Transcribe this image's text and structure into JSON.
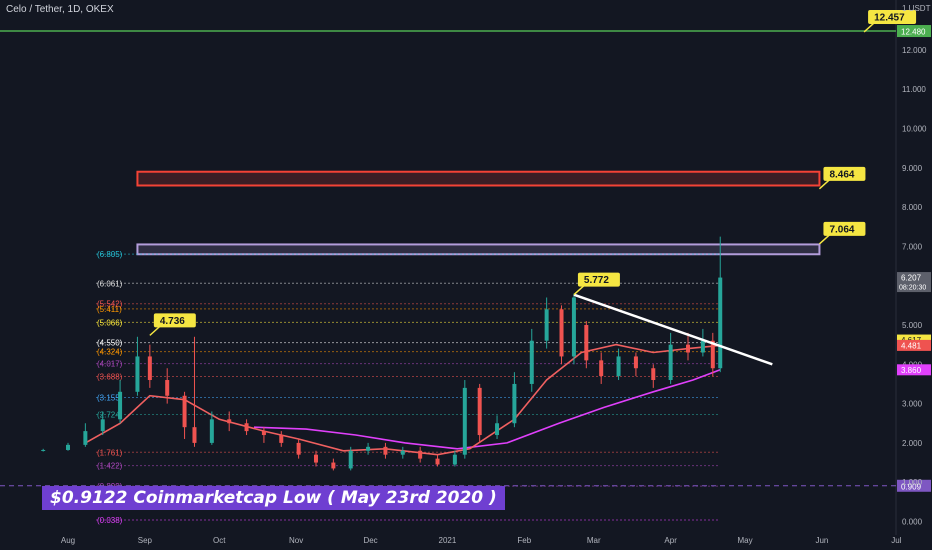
{
  "chart_title": "Celo / Tether, 1D, OKEX",
  "colors": {
    "background": "#131722",
    "candle_up": "#26a69a",
    "candle_down": "#ef5350",
    "ema_short": "#f06060",
    "ema_long": "#e040fb",
    "resistance_green": "#4caf50",
    "red_zone": "#f44336",
    "purple_zone": "#b39ddb",
    "badge": "#f5e642",
    "annotation_bg": "#6f3fd1"
  },
  "chart_data": {
    "type": "candlestick",
    "title": "Celo / Tether, 1D, OKEX",
    "quote_unit": "1 USDT",
    "yticks": [
      0.0,
      1.0,
      2.0,
      3.0,
      4.0,
      5.0,
      6.0,
      7.0,
      8.0,
      9.0,
      10.0,
      11.0,
      12.0
    ],
    "xticks": [
      "Aug",
      "Sep",
      "Oct",
      "Nov",
      "Dec",
      "2021",
      "Feb",
      "Mar",
      "Apr",
      "May",
      "Jun",
      "Jul"
    ],
    "candles": [
      {
        "d": "2020-07-22",
        "o": 1.8,
        "c": 1.82,
        "h": 1.85,
        "l": 1.78
      },
      {
        "d": "2020-08-01",
        "o": 1.82,
        "c": 1.95,
        "h": 2.0,
        "l": 1.8
      },
      {
        "d": "2020-08-08",
        "o": 1.95,
        "c": 2.3,
        "h": 2.5,
        "l": 1.9
      },
      {
        "d": "2020-08-15",
        "o": 2.3,
        "c": 2.6,
        "h": 2.8,
        "l": 2.2
      },
      {
        "d": "2020-08-22",
        "o": 2.6,
        "c": 3.3,
        "h": 3.6,
        "l": 2.5
      },
      {
        "d": "2020-08-29",
        "o": 3.3,
        "c": 4.2,
        "h": 4.7,
        "l": 3.2
      },
      {
        "d": "2020-09-03",
        "o": 4.2,
        "c": 3.6,
        "h": 4.5,
        "l": 3.4
      },
      {
        "d": "2020-09-10",
        "o": 3.6,
        "c": 3.2,
        "h": 3.9,
        "l": 3.0
      },
      {
        "d": "2020-09-17",
        "o": 3.2,
        "c": 2.4,
        "h": 3.3,
        "l": 2.1
      },
      {
        "d": "2020-09-21",
        "o": 2.4,
        "c": 2.0,
        "h": 4.7,
        "l": 1.9
      },
      {
        "d": "2020-09-28",
        "o": 2.0,
        "c": 2.6,
        "h": 2.8,
        "l": 1.95
      },
      {
        "d": "2020-10-05",
        "o": 2.6,
        "c": 2.5,
        "h": 2.8,
        "l": 2.3
      },
      {
        "d": "2020-10-12",
        "o": 2.5,
        "c": 2.3,
        "h": 2.6,
        "l": 2.2
      },
      {
        "d": "2020-10-19",
        "o": 2.3,
        "c": 2.2,
        "h": 2.4,
        "l": 2.0
      },
      {
        "d": "2020-10-26",
        "o": 2.2,
        "c": 2.0,
        "h": 2.3,
        "l": 1.9
      },
      {
        "d": "2020-11-02",
        "o": 2.0,
        "c": 1.7,
        "h": 2.1,
        "l": 1.6
      },
      {
        "d": "2020-11-09",
        "o": 1.7,
        "c": 1.5,
        "h": 1.8,
        "l": 1.4
      },
      {
        "d": "2020-11-16",
        "o": 1.5,
        "c": 1.35,
        "h": 1.6,
        "l": 1.3
      },
      {
        "d": "2020-11-23",
        "o": 1.35,
        "c": 1.8,
        "h": 1.9,
        "l": 1.3
      },
      {
        "d": "2020-11-30",
        "o": 1.8,
        "c": 1.9,
        "h": 2.0,
        "l": 1.7
      },
      {
        "d": "2020-12-07",
        "o": 1.9,
        "c": 1.7,
        "h": 2.0,
        "l": 1.6
      },
      {
        "d": "2020-12-14",
        "o": 1.7,
        "c": 1.8,
        "h": 1.9,
        "l": 1.6
      },
      {
        "d": "2020-12-21",
        "o": 1.8,
        "c": 1.6,
        "h": 1.9,
        "l": 1.5
      },
      {
        "d": "2020-12-28",
        "o": 1.6,
        "c": 1.45,
        "h": 1.7,
        "l": 1.4
      },
      {
        "d": "2021-01-04",
        "o": 1.45,
        "c": 1.7,
        "h": 1.8,
        "l": 1.4
      },
      {
        "d": "2021-01-08",
        "o": 1.7,
        "c": 3.4,
        "h": 3.6,
        "l": 1.6
      },
      {
        "d": "2021-01-14",
        "o": 3.4,
        "c": 2.2,
        "h": 3.5,
        "l": 2.0
      },
      {
        "d": "2021-01-21",
        "o": 2.2,
        "c": 2.5,
        "h": 2.7,
        "l": 2.1
      },
      {
        "d": "2021-01-28",
        "o": 2.5,
        "c": 3.5,
        "h": 3.8,
        "l": 2.4
      },
      {
        "d": "2021-02-04",
        "o": 3.5,
        "c": 4.6,
        "h": 4.9,
        "l": 3.3
      },
      {
        "d": "2021-02-10",
        "o": 4.6,
        "c": 5.4,
        "h": 5.7,
        "l": 4.4
      },
      {
        "d": "2021-02-16",
        "o": 5.4,
        "c": 4.2,
        "h": 5.5,
        "l": 4.0
      },
      {
        "d": "2021-02-21",
        "o": 4.2,
        "c": 5.7,
        "h": 5.8,
        "l": 4.0
      },
      {
        "d": "2021-02-26",
        "o": 5.0,
        "c": 4.1,
        "h": 5.1,
        "l": 3.9
      },
      {
        "d": "2021-03-04",
        "o": 4.1,
        "c": 3.7,
        "h": 4.3,
        "l": 3.5
      },
      {
        "d": "2021-03-11",
        "o": 3.7,
        "c": 4.2,
        "h": 4.4,
        "l": 3.6
      },
      {
        "d": "2021-03-18",
        "o": 4.2,
        "c": 3.9,
        "h": 4.3,
        "l": 3.7
      },
      {
        "d": "2021-03-25",
        "o": 3.9,
        "c": 3.6,
        "h": 4.0,
        "l": 3.4
      },
      {
        "d": "2021-04-01",
        "o": 3.6,
        "c": 4.5,
        "h": 4.8,
        "l": 3.5
      },
      {
        "d": "2021-04-08",
        "o": 4.5,
        "c": 4.3,
        "h": 4.8,
        "l": 4.1
      },
      {
        "d": "2021-04-14",
        "o": 4.3,
        "c": 4.6,
        "h": 4.9,
        "l": 4.2
      },
      {
        "d": "2021-04-18",
        "o": 4.6,
        "c": 3.9,
        "h": 4.8,
        "l": 3.7
      },
      {
        "d": "2021-04-21",
        "o": 3.9,
        "c": 6.207,
        "h": 7.25,
        "l": 3.8
      }
    ],
    "ema_short": [
      {
        "d": "2020-08-08",
        "v": 2.0
      },
      {
        "d": "2020-08-22",
        "v": 2.5
      },
      {
        "d": "2020-09-03",
        "v": 3.2
      },
      {
        "d": "2020-09-17",
        "v": 3.1
      },
      {
        "d": "2020-10-01",
        "v": 2.6
      },
      {
        "d": "2020-10-19",
        "v": 2.3
      },
      {
        "d": "2020-11-02",
        "v": 2.1
      },
      {
        "d": "2020-11-20",
        "v": 1.8
      },
      {
        "d": "2020-12-07",
        "v": 1.85
      },
      {
        "d": "2020-12-28",
        "v": 1.7
      },
      {
        "d": "2021-01-10",
        "v": 1.85
      },
      {
        "d": "2021-01-28",
        "v": 2.6
      },
      {
        "d": "2021-02-10",
        "v": 3.6
      },
      {
        "d": "2021-02-24",
        "v": 4.3
      },
      {
        "d": "2021-03-10",
        "v": 4.5
      },
      {
        "d": "2021-03-25",
        "v": 4.3
      },
      {
        "d": "2021-04-08",
        "v": 4.4
      },
      {
        "d": "2021-04-21",
        "v": 4.481
      }
    ],
    "ema_long": [
      {
        "d": "2020-10-15",
        "v": 2.4
      },
      {
        "d": "2020-11-05",
        "v": 2.35
      },
      {
        "d": "2020-11-25",
        "v": 2.2
      },
      {
        "d": "2020-12-15",
        "v": 2.0
      },
      {
        "d": "2021-01-05",
        "v": 1.85
      },
      {
        "d": "2021-01-25",
        "v": 2.0
      },
      {
        "d": "2021-02-15",
        "v": 2.5
      },
      {
        "d": "2021-03-05",
        "v": 2.9
      },
      {
        "d": "2021-03-25",
        "v": 3.3
      },
      {
        "d": "2021-04-10",
        "v": 3.6
      },
      {
        "d": "2021-04-21",
        "v": 3.86
      }
    ],
    "fib_levels": [
      {
        "v": 6.805,
        "label": "(6.805)",
        "color": "#26c6da"
      },
      {
        "v": 6.061,
        "label": "(6.061)",
        "color": "#e0e0e0"
      },
      {
        "v": 5.542,
        "label": "(5.542)",
        "color": "#ef5350"
      },
      {
        "v": 5.411,
        "label": "(5.411)",
        "color": "#ff9800"
      },
      {
        "v": 5.066,
        "label": "(5.066)",
        "color": "#ffeb3b"
      },
      {
        "v": 4.55,
        "label": "(4.550)",
        "color": "#ffffff"
      },
      {
        "v": 4.324,
        "label": "(4.324)",
        "color": "#ff9800"
      },
      {
        "v": 4.017,
        "label": "(4.017)",
        "color": "#ab47bc"
      },
      {
        "v": 3.688,
        "label": "(3.688)",
        "color": "#ef5350"
      },
      {
        "v": 3.155,
        "label": "(3.155)",
        "color": "#42a5f5"
      },
      {
        "v": 2.724,
        "label": "(2.724)",
        "color": "#26a69a"
      },
      {
        "v": 1.761,
        "label": "(1.761)",
        "color": "#ef5350"
      },
      {
        "v": 1.422,
        "label": "(1.422)",
        "color": "#ab47bc"
      },
      {
        "v": 0.899,
        "label": "(0.899)",
        "color": "#ab47bc"
      },
      {
        "v": 0.038,
        "label": "(0.038)",
        "color": "#e040fb"
      }
    ],
    "horizontal_lines": [
      {
        "v": 12.48,
        "color": "#4caf50",
        "label": "12.480"
      },
      {
        "v": 0.909,
        "color": "#7e57c2",
        "label": "0.909"
      }
    ],
    "zones": [
      {
        "from": 8.55,
        "to": 8.9,
        "color": "#f44336"
      },
      {
        "from": 6.8,
        "to": 7.05,
        "color": "#b39ddb"
      }
    ],
    "trendline": {
      "from": {
        "d": "2021-02-21",
        "v": 5.772
      },
      "to": {
        "d": "2021-05-12",
        "v": 4.0
      }
    },
    "callouts": [
      {
        "text": "12.457",
        "d": "2021-06-18",
        "v": 12.457
      },
      {
        "text": "8.464",
        "d": "2021-05-31",
        "v": 8.464
      },
      {
        "text": "7.064",
        "d": "2021-05-31",
        "v": 7.064
      },
      {
        "text": "5.772",
        "d": "2021-02-21",
        "v": 5.772
      },
      {
        "text": "4.736",
        "d": "2020-09-03",
        "v": 4.736
      }
    ],
    "axis_labels": [
      {
        "v": 6.207,
        "text": "6.207",
        "sub": "08:20:30",
        "bg": "#5d606b",
        "fg": "#ffffff"
      },
      {
        "v": 4.617,
        "text": "4.617",
        "bg": "#f5e642",
        "fg": "#131722"
      },
      {
        "v": 4.481,
        "text": "4.481",
        "bg": "#ef5350",
        "fg": "#ffffff"
      },
      {
        "v": 3.86,
        "text": "3.860",
        "bg": "#e040fb",
        "fg": "#ffffff"
      }
    ]
  },
  "annotation_text": "$0.9122 Coinmarketcap Low ( May 23rd 2020 )"
}
